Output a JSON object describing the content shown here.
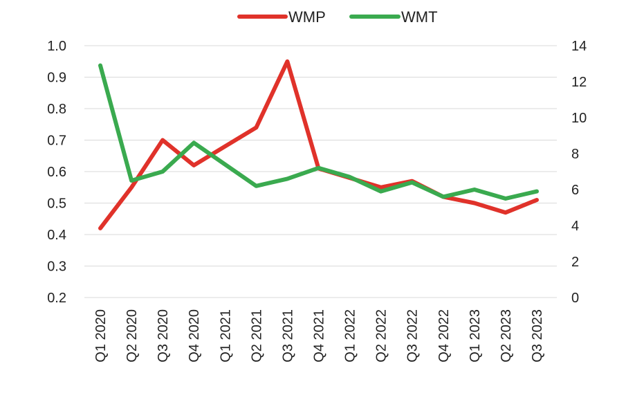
{
  "chart_data": {
    "type": "line",
    "categories": [
      "Q1 2020",
      "Q2 2020",
      "Q3 2020",
      "Q4 2020",
      "Q1 2021",
      "Q2 2021",
      "Q3 2021",
      "Q4 2021",
      "Q1 2022",
      "Q2 2022",
      "Q3 2022",
      "Q4 2022",
      "Q1 2023",
      "Q2 2023",
      "Q3 2023"
    ],
    "series": [
      {
        "name": "WMP",
        "axis": "left",
        "color": "#e0322a",
        "values": [
          0.42,
          0.55,
          0.7,
          0.62,
          0.68,
          0.74,
          0.95,
          0.61,
          0.58,
          0.55,
          0.57,
          0.52,
          0.5,
          0.47,
          0.51
        ]
      },
      {
        "name": "WMT",
        "axis": "right",
        "color": "#3aaa4f",
        "values": [
          12.9,
          6.5,
          7.0,
          8.6,
          7.4,
          6.2,
          6.6,
          7.2,
          6.7,
          5.9,
          6.4,
          5.6,
          6.0,
          5.5,
          5.9
        ]
      }
    ],
    "y_left": {
      "ticks": [
        "1.0",
        "0.9",
        "0.8",
        "0.7",
        "0.6",
        "0.5",
        "0.4",
        "0.3",
        "0.2"
      ],
      "range": [
        0.2,
        1.0
      ]
    },
    "y_right": {
      "ticks": [
        "14",
        "12",
        "10",
        "8",
        "6",
        "4",
        "2",
        "0"
      ],
      "range": [
        0,
        14
      ]
    },
    "grid": true,
    "legend_position": "top"
  }
}
